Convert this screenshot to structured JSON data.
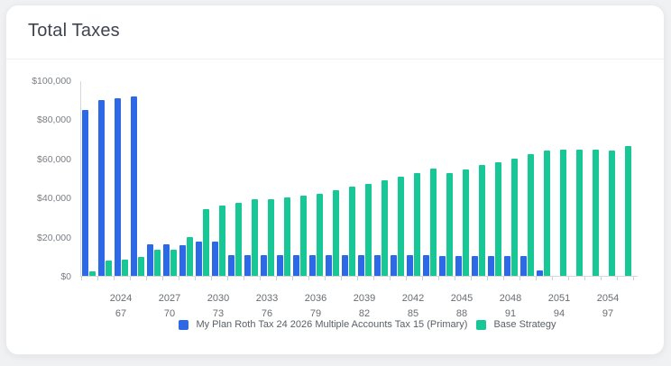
{
  "page": {
    "title": "Total Taxes"
  },
  "colors": {
    "plan_blue": "#2D69E6",
    "base_green": "#17C796",
    "axis_line": "#d6d8da"
  },
  "chart_data": {
    "type": "bar",
    "title": "Total Taxes",
    "grid": false,
    "legend_position": "bottom",
    "ylim": [
      0,
      100000
    ],
    "yticks": [
      0,
      20000,
      40000,
      60000,
      80000,
      100000
    ],
    "ytick_labels": [
      "$0",
      "$20,000",
      "$40,000",
      "$60,000",
      "$80,000",
      "$100,000"
    ],
    "x": [
      2022,
      2023,
      2024,
      2025,
      2026,
      2027,
      2028,
      2029,
      2030,
      2031,
      2032,
      2033,
      2034,
      2035,
      2036,
      2037,
      2038,
      2039,
      2040,
      2041,
      2042,
      2043,
      2044,
      2045,
      2046,
      2047,
      2048,
      2049,
      2050,
      2051,
      2052,
      2053,
      2054,
      2055
    ],
    "xtick_labels": [
      {
        "year": "2024",
        "age": "67"
      },
      {
        "year": "2027",
        "age": "70"
      },
      {
        "year": "2030",
        "age": "73"
      },
      {
        "year": "2033",
        "age": "76"
      },
      {
        "year": "2036",
        "age": "79"
      },
      {
        "year": "2039",
        "age": "82"
      },
      {
        "year": "2042",
        "age": "85"
      },
      {
        "year": "2045",
        "age": "88"
      },
      {
        "year": "2048",
        "age": "91"
      },
      {
        "year": "2051",
        "age": "94"
      },
      {
        "year": "2054",
        "age": "97"
      }
    ],
    "series": [
      {
        "name": "My Plan Roth Tax 24 2026 Multiple Accounts Tax 15 (Primary)",
        "color": "#2D69E6",
        "values": [
          85000,
          90000,
          91000,
          91500,
          16200,
          15900,
          15600,
          17300,
          17300,
          10800,
          10500,
          10500,
          10500,
          10500,
          10500,
          10500,
          10500,
          10500,
          10500,
          10500,
          10500,
          10500,
          10300,
          10300,
          10300,
          10300,
          10300,
          10300,
          2700,
          0,
          0,
          0,
          0,
          0
        ]
      },
      {
        "name": "Base Strategy",
        "color": "#17C796",
        "values": [
          2300,
          7700,
          8500,
          9500,
          13500,
          13500,
          20000,
          34000,
          36000,
          37300,
          39000,
          39300,
          40300,
          40800,
          42100,
          44000,
          45500,
          47000,
          48800,
          50500,
          52700,
          54900,
          52400,
          54400,
          56500,
          58200,
          60100,
          62100,
          64000,
          64500,
          64500,
          64300,
          64200,
          66300
        ]
      }
    ]
  }
}
